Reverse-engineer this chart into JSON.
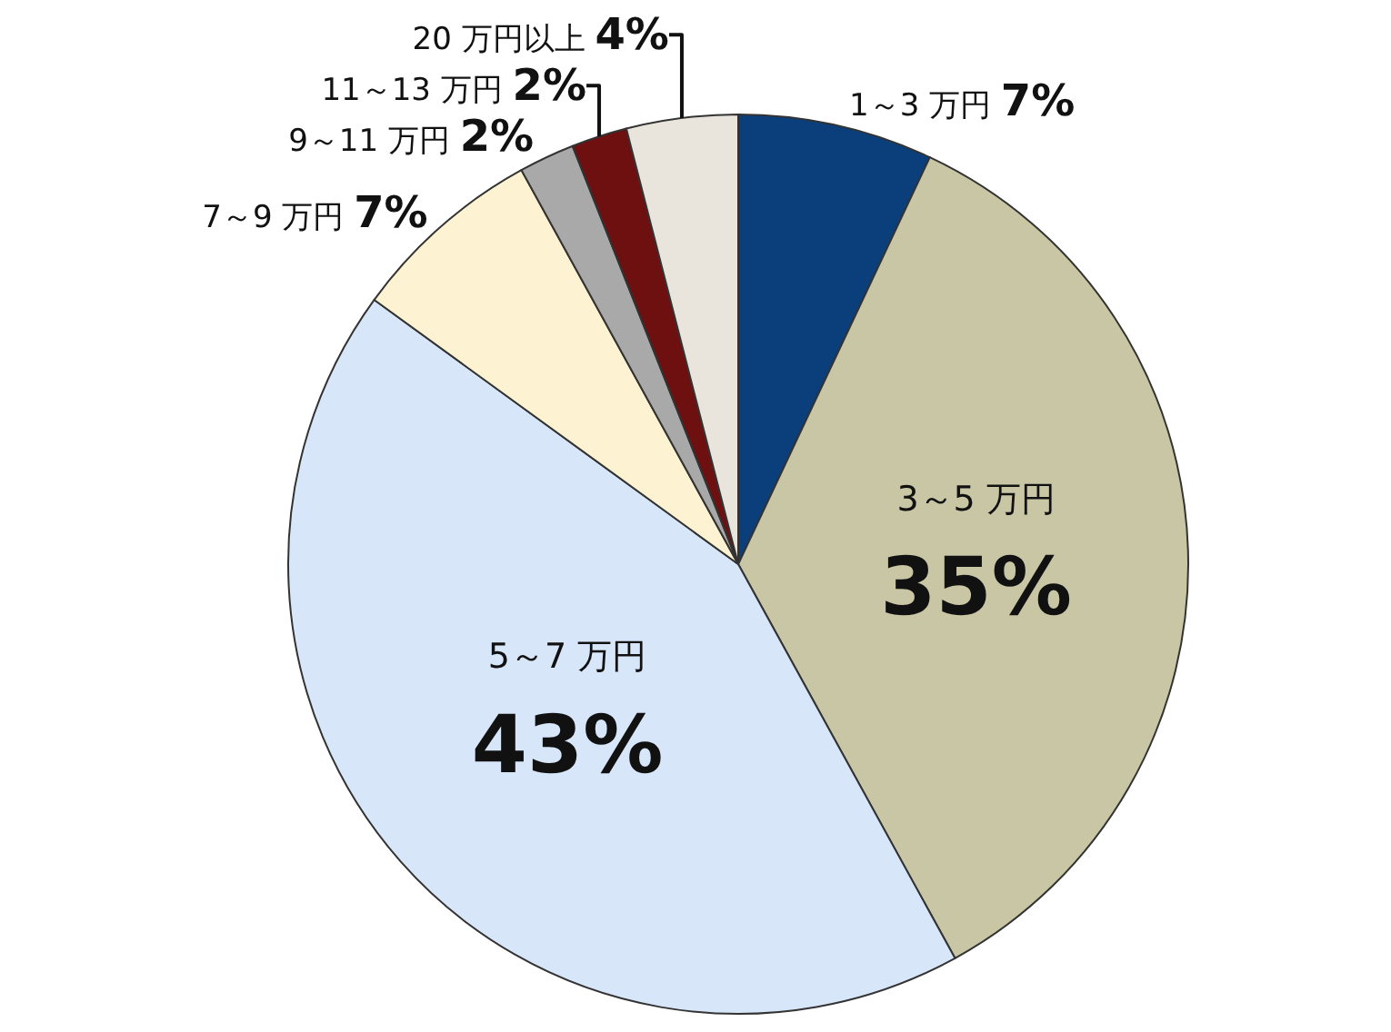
{
  "chart_data": {
    "type": "pie",
    "categories": [
      "1～3 万円",
      "3～5 万円",
      "5～7 万円",
      "7～9 万円",
      "9～11 万円",
      "11～13 万円",
      "20 万円以上"
    ],
    "values": [
      7,
      35,
      43,
      7,
      2,
      2,
      4
    ],
    "value_labels": [
      "7%",
      "35%",
      "43%",
      "7%",
      "2%",
      "2%",
      "4%"
    ],
    "colors": [
      "#0b3f7c",
      "#c9c6a6",
      "#d7e6f8",
      "#fdf2d2",
      "#a9a9a9",
      "#6e0f10",
      "#e9e5dc"
    ],
    "legend": false
  }
}
